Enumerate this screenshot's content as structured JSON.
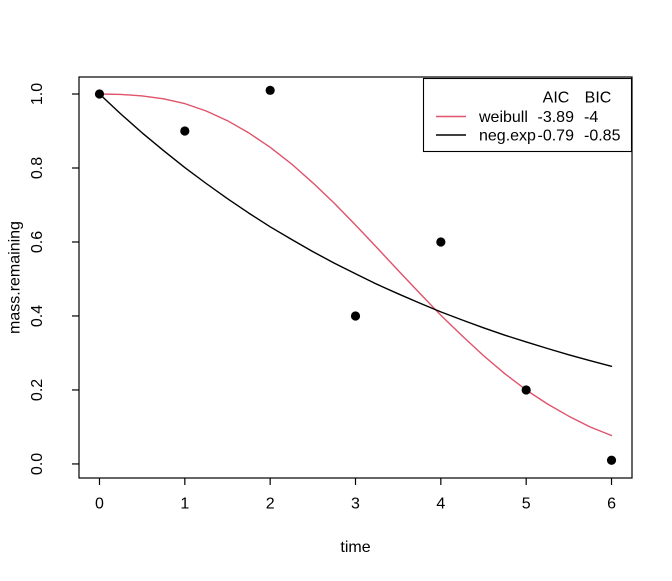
{
  "figure": {
    "background": "#ffffff",
    "frame_color": "#000000"
  },
  "chart_data": {
    "type": "scatter",
    "title": "",
    "xlabel": "time",
    "ylabel": "mass.remaining",
    "xlim": [
      -0.24,
      6.24
    ],
    "ylim": [
      -0.038,
      1.046
    ],
    "grid": "off",
    "x_tick_labels": [
      "0",
      "1",
      "2",
      "3",
      "4",
      "5",
      "6"
    ],
    "x_tick_values": [
      0,
      1,
      2,
      3,
      4,
      5,
      6
    ],
    "y_tick_labels": [
      "0.0",
      "0.2",
      "0.4",
      "0.6",
      "0.8",
      "1.0"
    ],
    "y_tick_values": [
      0,
      0.2,
      0.4,
      0.6,
      0.8,
      1.0
    ],
    "points": {
      "x": [
        0,
        1,
        2,
        3,
        4,
        5,
        6
      ],
      "y": [
        1.0,
        0.9,
        1.01,
        0.4,
        0.6,
        0.2,
        0.01
      ],
      "color": "#000000"
    },
    "series": [
      {
        "name": "weibull",
        "color": "#DF536B",
        "aic": "-3.89",
        "bic": "-4",
        "x": [
          0,
          0.25,
          0.5,
          0.75,
          1,
          1.25,
          1.5,
          1.75,
          2,
          2.25,
          2.5,
          2.75,
          3,
          3.25,
          3.5,
          3.75,
          4,
          4.25,
          4.5,
          4.75,
          5,
          5.25,
          5.5,
          5.75,
          6
        ],
        "y": [
          1.0,
          0.999,
          0.995,
          0.987,
          0.974,
          0.954,
          0.928,
          0.895,
          0.856,
          0.811,
          0.76,
          0.705,
          0.646,
          0.585,
          0.523,
          0.462,
          0.402,
          0.346,
          0.293,
          0.244,
          0.2,
          0.162,
          0.129,
          0.1,
          0.077
        ]
      },
      {
        "name": "neg.exp",
        "color": "#000000",
        "aic": "-0.79",
        "bic": "-0.85",
        "x": [
          0,
          0.25,
          0.5,
          0.75,
          1,
          1.25,
          1.5,
          1.75,
          2,
          2.25,
          2.5,
          2.75,
          3,
          3.25,
          3.5,
          3.75,
          4,
          4.25,
          4.5,
          4.75,
          5,
          5.25,
          5.5,
          5.75,
          6
        ],
        "y": [
          1.0,
          0.946,
          0.895,
          0.847,
          0.801,
          0.758,
          0.717,
          0.678,
          0.641,
          0.607,
          0.574,
          0.543,
          0.514,
          0.486,
          0.46,
          0.435,
          0.411,
          0.389,
          0.368,
          0.348,
          0.33,
          0.312,
          0.295,
          0.279,
          0.264
        ]
      }
    ],
    "legend": {
      "position": "topright",
      "columns": [
        "AIC",
        "BIC"
      ]
    }
  }
}
